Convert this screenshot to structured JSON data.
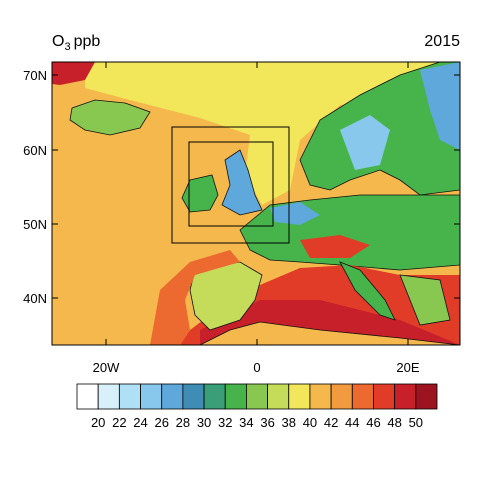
{
  "title": {
    "species": "O",
    "subscript": "3",
    "unit": "ppb"
  },
  "year": "2015",
  "lat_labels": [
    "70N",
    "60N",
    "50N",
    "40N"
  ],
  "lon_labels": [
    "20W",
    "0",
    "20E"
  ],
  "colorbar": {
    "labels": [
      20,
      22,
      24,
      26,
      28,
      30,
      32,
      34,
      36,
      38,
      40,
      42,
      44,
      46,
      48,
      50
    ],
    "colors": [
      "#ffffff",
      "#d8f0fa",
      "#b0e0f5",
      "#88c8ec",
      "#5fa8dc",
      "#3f8cb4",
      "#3a9e78",
      "#46b44a",
      "#88c850",
      "#c4dc5a",
      "#f2e65a",
      "#f5b84c",
      "#f29a40",
      "#ec6a30",
      "#e03c28",
      "#c8202a",
      "#9c1420"
    ]
  }
}
